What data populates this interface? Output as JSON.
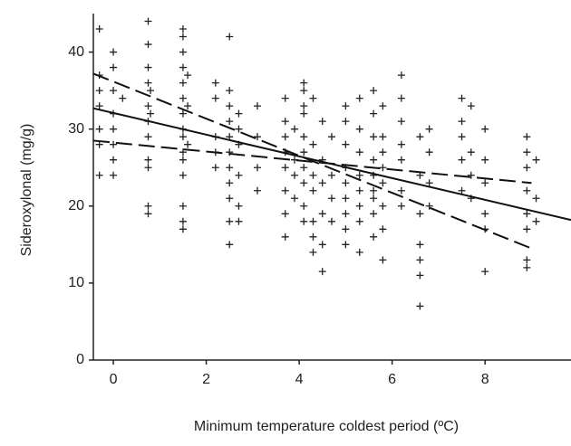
{
  "chart_data": {
    "type": "scatter",
    "xlabel": "Minimum temperature coldest period (ºC)",
    "ylabel": "Sideroxylonal (mg/g)",
    "xlim": [
      -0.43,
      9.85
    ],
    "ylim": [
      0,
      45
    ],
    "xticks": [
      0,
      2,
      4,
      6,
      8
    ],
    "yticks": [
      0,
      10,
      20,
      30,
      40
    ],
    "grid": false,
    "series": [
      {
        "type": "scatter",
        "color": "#222222",
        "x": [
          -0.3,
          -0.3,
          -0.3,
          -0.3,
          -0.3,
          -0.3,
          -0.3,
          0,
          0,
          0,
          0,
          0,
          0,
          0,
          0,
          0.2,
          0.75,
          0.75,
          0.75,
          0.75,
          0.75,
          0.75,
          0.75,
          0.75,
          0.75,
          0.75,
          0.75,
          0.8,
          0.8,
          1.5,
          1.5,
          1.5,
          1.5,
          1.5,
          1.5,
          1.5,
          1.5,
          1.5,
          1.5,
          1.5,
          1.5,
          1.5,
          1.5,
          1.5,
          1.6,
          1.6,
          1.6,
          2.2,
          2.2,
          2.2,
          2.2,
          2.2,
          2.5,
          2.5,
          2.5,
          2.5,
          2.5,
          2.5,
          2.5,
          2.5,
          2.5,
          2.5,
          2.5,
          2.7,
          2.7,
          2.7,
          2.7,
          2.7,
          2.7,
          3.1,
          3.1,
          3.1,
          3.1,
          3.7,
          3.7,
          3.7,
          3.7,
          3.7,
          3.7,
          3.7,
          3.7,
          3.9,
          3.9,
          3.9,
          3.9,
          4.1,
          4.1,
          4.1,
          4.1,
          4.1,
          4.1,
          4.1,
          4.1,
          4.1,
          4.1,
          4.3,
          4.3,
          4.3,
          4.3,
          4.3,
          4.3,
          4.3,
          4.5,
          4.5,
          4.5,
          4.5,
          4.5,
          4.5,
          4.7,
          4.7,
          4.7,
          4.7,
          5.0,
          5.0,
          5.0,
          5.0,
          5.0,
          5.0,
          5.0,
          5.0,
          5.0,
          5.3,
          5.3,
          5.3,
          5.3,
          5.3,
          5.3,
          5.3,
          5.3,
          5.6,
          5.6,
          5.6,
          5.6,
          5.6,
          5.6,
          5.6,
          5.6,
          5.6,
          5.8,
          5.8,
          5.8,
          5.8,
          5.8,
          5.8,
          5.8,
          5.8,
          6.2,
          6.2,
          6.2,
          6.2,
          6.2,
          6.2,
          6.2,
          6.6,
          6.6,
          6.6,
          6.6,
          6.6,
          6.6,
          6.6,
          6.8,
          6.8,
          6.8,
          6.8,
          7.5,
          7.5,
          7.5,
          7.5,
          7.5,
          7.7,
          7.7,
          7.7,
          7.7,
          8.0,
          8.0,
          8.0,
          8.0,
          8.0,
          8.0,
          8.9,
          8.9,
          8.9,
          8.9,
          8.9,
          8.9,
          8.9,
          8.9,
          9.1,
          9.1,
          9.1
        ],
        "values": [
          43,
          37,
          35,
          33,
          30,
          28,
          24,
          40,
          38,
          35,
          32,
          30,
          28,
          26,
          24,
          34,
          44,
          41,
          38,
          36,
          33,
          31,
          29,
          26,
          25,
          20,
          19,
          35,
          32,
          43,
          42,
          40,
          38,
          36,
          34,
          32,
          30,
          29,
          27,
          26,
          24,
          20,
          18,
          17,
          37,
          33,
          28,
          36,
          34,
          29,
          27,
          25,
          42,
          35,
          33,
          31,
          29,
          27,
          25,
          23,
          21,
          18,
          15,
          32,
          30,
          28,
          24,
          20,
          18,
          33,
          29,
          25,
          22,
          34,
          31,
          29,
          27,
          25,
          22,
          19,
          16,
          30,
          26,
          24,
          21,
          36,
          35,
          33,
          32,
          29,
          27,
          25,
          23,
          20,
          18,
          34,
          28,
          24,
          22,
          18,
          16,
          14,
          31,
          26,
          23,
          19,
          15,
          11.5,
          29,
          24,
          21,
          18,
          33,
          31,
          28,
          25,
          23,
          21,
          19,
          17,
          15,
          34,
          30,
          27,
          24,
          22,
          20,
          18,
          14,
          35,
          32,
          29,
          26,
          24,
          22,
          21,
          19,
          16,
          33,
          29,
          27,
          25,
          23,
          20,
          17,
          13,
          37,
          34,
          31,
          28,
          26,
          22,
          20,
          29,
          24,
          19,
          15,
          13,
          11,
          7,
          30,
          27,
          23,
          20,
          34,
          31,
          29,
          26,
          22,
          33,
          27,
          24,
          21,
          30,
          26,
          23,
          19,
          17,
          11.5,
          29,
          27,
          25,
          22,
          19,
          17,
          13,
          12,
          26,
          21,
          18
        ]
      },
      {
        "type": "line",
        "color": "#111111",
        "dash": false,
        "x": [
          -0.43,
          9.85
        ],
        "values": [
          32.7,
          18.2
        ]
      },
      {
        "type": "line",
        "color": "#111111",
        "dash": true,
        "x": [
          -0.43,
          9.0
        ],
        "values": [
          37.2,
          14.5
        ]
      },
      {
        "type": "line",
        "color": "#111111",
        "dash": true,
        "x": [
          -0.43,
          9.0
        ],
        "values": [
          28.5,
          23.0
        ]
      }
    ]
  }
}
